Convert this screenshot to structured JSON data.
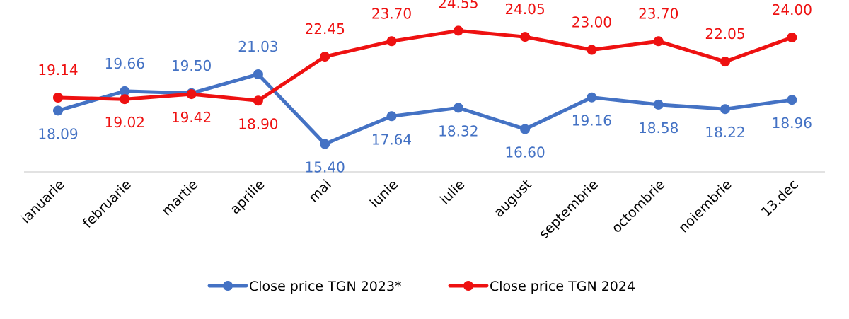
{
  "chart_data": {
    "type": "line",
    "title": "",
    "xlabel": "",
    "ylabel": "",
    "categories": [
      "ianuarie",
      "februarie",
      "martie",
      "aprilie",
      "mai",
      "iunie",
      "iulie",
      "august",
      "septembrie",
      "octombrie",
      "noiembrie",
      "13.dec"
    ],
    "ylim": [
      10,
      26
    ],
    "grid": false,
    "legend_position": "bottom",
    "series": [
      {
        "name": "Close price TGN 2023*",
        "color": "#4472c4",
        "values": [
          18.09,
          19.66,
          19.5,
          21.03,
          15.4,
          17.64,
          18.32,
          16.6,
          19.16,
          18.58,
          18.22,
          18.96
        ],
        "labels": [
          "18.09",
          "19.66",
          "19.50",
          "21.03",
          "15.40",
          "17.64",
          "18.32",
          "16.60",
          "19.16",
          "18.58",
          "18.22",
          "18.96"
        ]
      },
      {
        "name": "Close price TGN 2024",
        "color": "#ee1111",
        "values": [
          19.14,
          19.02,
          19.42,
          18.9,
          22.45,
          23.7,
          24.55,
          24.05,
          23.0,
          23.7,
          22.05,
          24.0
        ],
        "labels": [
          "19.14",
          "19.02",
          "19.42",
          "18.90",
          "22.45",
          "23.70",
          "24.55",
          "24.05",
          "23.00",
          "23.70",
          "22.05",
          "24.00"
        ]
      }
    ]
  }
}
